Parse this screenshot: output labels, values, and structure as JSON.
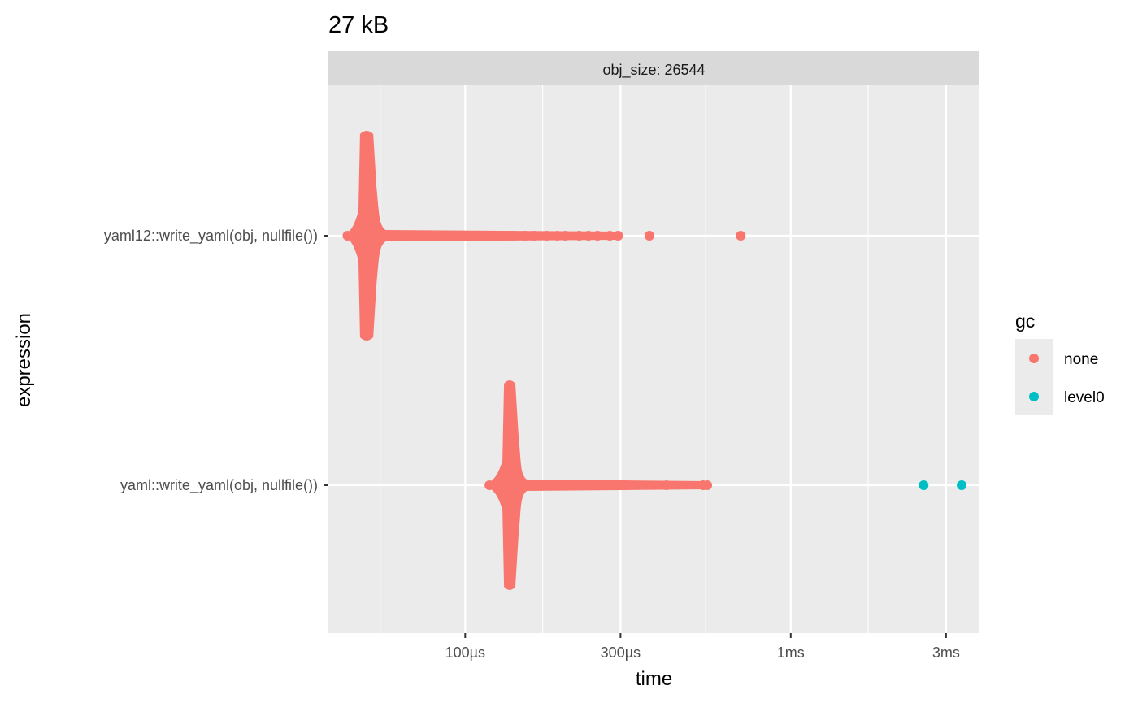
{
  "chart_data": {
    "type": "scatter",
    "title": "27 kB",
    "facet_label": "obj_size: 26544",
    "xlabel": "time",
    "ylabel": "expression",
    "x_scale": "log10",
    "x_unit": "s",
    "xlim": [
      3.8e-05,
      0.0038
    ],
    "x_ticks": [
      {
        "value": 0.0001,
        "label": "100µs"
      },
      {
        "value": 0.0003,
        "label": "300µs"
      },
      {
        "value": 0.001,
        "label": "1ms"
      },
      {
        "value": 0.003,
        "label": "3ms"
      }
    ],
    "x_minor_ticks": [
      5.48e-05,
      0.000173,
      0.000548,
      0.00173
    ],
    "categories": [
      "yaml12::write_yaml(obj, nullfile())",
      "yaml::write_yaml(obj, nullfile())"
    ],
    "grid": true,
    "legend": {
      "title": "gc",
      "position": "right",
      "entries": [
        {
          "name": "none",
          "color": "#F8766D"
        },
        {
          "name": "level0",
          "color": "#00BFC4"
        }
      ]
    },
    "distributions": [
      {
        "category": "yaml12::write_yaml(obj, nullfile())",
        "gc": "none",
        "color": "#F8766D",
        "min": 4.25e-05,
        "mode": 4.98e-05,
        "body_max": 5.6e-05,
        "tail": [
          5.9e-05,
          6.4e-05,
          7e-05,
          7.7e-05,
          8.5e-05,
          9.4e-05,
          0.000104,
          0.000115,
          0.000128,
          0.00014,
          0.000153,
          0.000163,
          0.000178,
          0.000192,
          0.000203,
          0.000224,
          0.000239,
          0.000255,
          0.000278,
          0.000295,
          0.000368,
          0.000702
        ]
      },
      {
        "category": "yaml::write_yaml(obj, nullfile())",
        "gc": "none",
        "color": "#F8766D",
        "min": 0.000116,
        "mode": 0.000137,
        "body_max": 0.000152,
        "tail": [
          0.000158,
          0.000167,
          0.000178,
          0.000192,
          0.000208,
          0.000224,
          0.000242,
          0.00026,
          0.000276,
          0.000292,
          0.000306,
          0.000315,
          0.000415,
          0.000538,
          0.000554
        ]
      },
      {
        "category": "yaml::write_yaml(obj, nullfile())",
        "gc": "level0",
        "color": "#00BFC4",
        "points": [
          0.00256,
          0.00335
        ]
      }
    ]
  }
}
